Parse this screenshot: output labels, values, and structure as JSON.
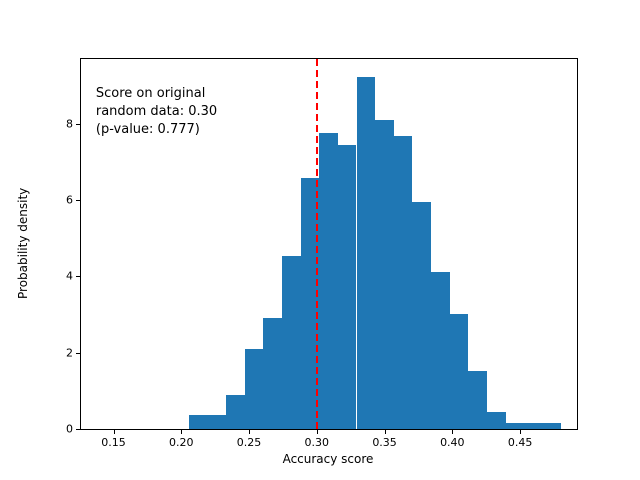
{
  "chart_data": {
    "type": "bar",
    "subtype": "histogram",
    "title": "",
    "xlabel": "Accuracy score",
    "ylabel": "Probability density",
    "bin_edges": [
      0.2055,
      0.2193,
      0.233,
      0.2468,
      0.2605,
      0.2743,
      0.288,
      0.3018,
      0.3155,
      0.3293,
      0.343,
      0.3568,
      0.3705,
      0.3843,
      0.398,
      0.4118,
      0.4255,
      0.4393,
      0.453,
      0.4668,
      0.4805
    ],
    "densities": [
      0.37,
      0.37,
      0.88,
      2.1,
      2.92,
      4.53,
      6.58,
      7.75,
      7.45,
      9.23,
      8.1,
      7.68,
      5.95,
      4.1,
      3.0,
      1.52,
      0.44,
      0.15,
      0.15,
      0.15
    ],
    "xlim": [
      0.126,
      0.492
    ],
    "ylim": [
      0,
      9.69
    ],
    "x_ticks": [
      0.15,
      0.2,
      0.25,
      0.3,
      0.35,
      0.4,
      0.45
    ],
    "x_tick_labels": [
      "0.15",
      "0.20",
      "0.25",
      "0.30",
      "0.35",
      "0.40",
      "0.45"
    ],
    "y_ticks": [
      0,
      2,
      4,
      6,
      8
    ],
    "y_tick_labels": [
      "0",
      "2",
      "4",
      "6",
      "8"
    ],
    "bar_color": "#1f77b4",
    "vline": {
      "x": 0.3,
      "color": "#ff0000",
      "style": "dashed"
    },
    "annotation": {
      "line1": "Score on original",
      "line2": "random data: 0.30",
      "line3": "(p-value: 0.777)"
    },
    "grid": false,
    "legend_position": "none"
  }
}
